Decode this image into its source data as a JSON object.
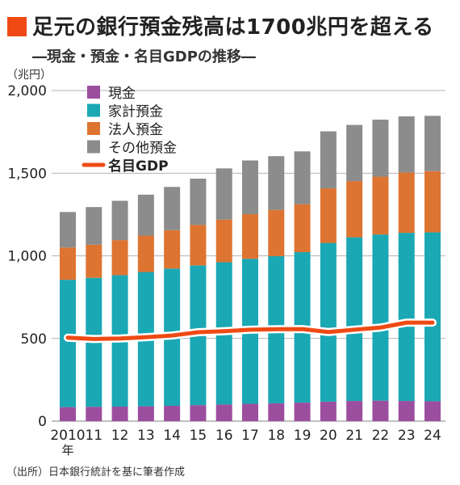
{
  "header": {
    "title": "足元の銀行預金残高は1700兆円を超える",
    "subtitle": "―現金・預金・名目GDPの推移―",
    "unit": "（兆円）"
  },
  "footer": {
    "source": "（出所）日本銀行統計を基に筆者作成"
  },
  "colors": {
    "accent": "#ef4a14",
    "cash": "#9c4e9e",
    "household": "#1aa8b4",
    "corporate": "#de7431",
    "other": "#8c8c8c",
    "gdp": "#ef4a14"
  },
  "chart_data": {
    "type": "bar",
    "stacked": true,
    "categories": [
      "2010",
      "11",
      "12",
      "13",
      "14",
      "15",
      "16",
      "17",
      "18",
      "19",
      "20",
      "21",
      "22",
      "23",
      "24"
    ],
    "x_suffix_label": "年",
    "ylim": [
      0,
      2000
    ],
    "yticks": [
      0,
      500,
      1000,
      1500,
      2000
    ],
    "ytick_labels": [
      "0",
      "500",
      "1,000",
      "1,500",
      "2,000"
    ],
    "grid": true,
    "legend_position": "top-left",
    "series": [
      {
        "name": "現金",
        "kind": "bar",
        "values": [
          85,
          87,
          88,
          90,
          93,
          97,
          101,
          105,
          108,
          112,
          118,
          122,
          124,
          122,
          120
        ]
      },
      {
        "name": "家計預金",
        "kind": "bar",
        "values": [
          770,
          780,
          795,
          812,
          830,
          845,
          860,
          877,
          890,
          910,
          960,
          990,
          1005,
          1017,
          1022
        ]
      },
      {
        "name": "法人預金",
        "kind": "bar",
        "values": [
          195,
          200,
          212,
          220,
          232,
          245,
          258,
          270,
          280,
          290,
          330,
          340,
          350,
          365,
          370
        ]
      },
      {
        "name": "その他預金",
        "kind": "bar",
        "values": [
          215,
          228,
          238,
          248,
          262,
          280,
          310,
          325,
          325,
          320,
          345,
          340,
          345,
          340,
          335
        ]
      },
      {
        "name": "名目GDP",
        "kind": "line",
        "values": [
          505,
          497,
          500,
          508,
          518,
          538,
          544,
          553,
          556,
          557,
          539,
          553,
          566,
          596,
          596
        ]
      }
    ]
  }
}
